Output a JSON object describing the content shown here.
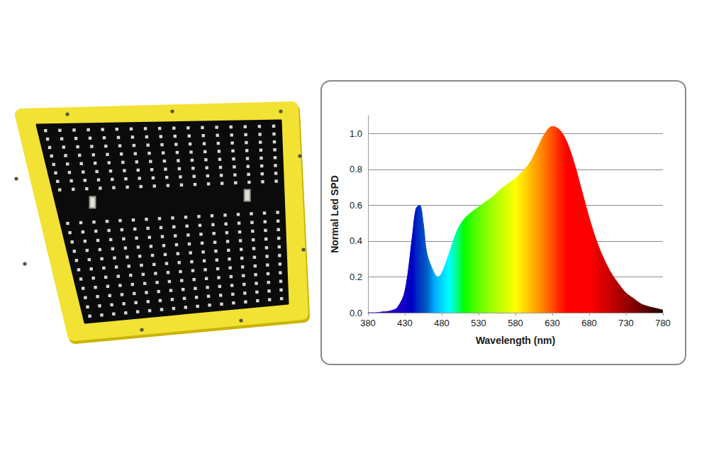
{
  "chart_data": {
    "type": "area",
    "xlabel": "Wavelength (nm)",
    "ylabel": "Normal Led SPD",
    "x": [
      380,
      390,
      400,
      410,
      420,
      430,
      440,
      445,
      450,
      455,
      460,
      470,
      475,
      480,
      490,
      500,
      510,
      520,
      530,
      540,
      550,
      560,
      570,
      580,
      590,
      600,
      610,
      620,
      630,
      640,
      650,
      660,
      670,
      680,
      690,
      700,
      710,
      720,
      730,
      740,
      750,
      760,
      770,
      780
    ],
    "values": [
      0.0,
      0.0,
      0.005,
      0.01,
      0.03,
      0.12,
      0.42,
      0.58,
      0.6,
      0.5,
      0.33,
      0.22,
      0.2,
      0.22,
      0.33,
      0.45,
      0.52,
      0.56,
      0.59,
      0.62,
      0.65,
      0.69,
      0.72,
      0.75,
      0.79,
      0.84,
      0.92,
      1.0,
      1.04,
      1.02,
      0.95,
      0.83,
      0.68,
      0.53,
      0.4,
      0.3,
      0.22,
      0.16,
      0.11,
      0.08,
      0.05,
      0.035,
      0.025,
      0.015
    ],
    "xlim": [
      380,
      780
    ],
    "xticks": [
      380,
      430,
      480,
      530,
      580,
      630,
      680,
      730,
      780
    ],
    "ylim": [
      0,
      1.1
    ],
    "yticks": [
      {
        "value": 0,
        "label": "0.0"
      },
      {
        "value": 0.2,
        "label": "0.2"
      },
      {
        "value": 0.4,
        "label": "0.4"
      },
      {
        "value": 0.6,
        "label": "0.6"
      },
      {
        "value": 0.8,
        "label": "0.8"
      },
      {
        "value": 1,
        "label": "1.0"
      }
    ],
    "grid": true
  }
}
